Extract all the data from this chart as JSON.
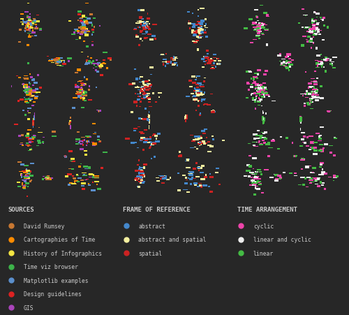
{
  "bg_color": "#272727",
  "text_color": "#cccccc",
  "title_fontsize": 6.5,
  "label_fontsize": 5.8,
  "sources_title": "SOURCES",
  "sources_items": [
    {
      "label": "David Rumsey",
      "color": "#c87832"
    },
    {
      "label": "Cartographies of Time",
      "color": "#ff8c00"
    },
    {
      "label": "History of Infographics",
      "color": "#f5e642"
    },
    {
      "label": "Time viz browser",
      "color": "#3db34a"
    },
    {
      "label": "Matplotlib examples",
      "color": "#5b8fcc"
    },
    {
      "label": "Design guidelines",
      "color": "#dd2222"
    },
    {
      "label": "GIS",
      "color": "#aa44bb"
    }
  ],
  "frame_title": "FRAME OF REFERENCE",
  "frame_items": [
    {
      "label": "abstract",
      "color": "#4488cc"
    },
    {
      "label": "abstract and spatial",
      "color": "#f5f0a0"
    },
    {
      "label": "spatial",
      "color": "#cc2222"
    }
  ],
  "time_title": "TIME ARRANGEMENT",
  "time_items": [
    {
      "label": "cyclic",
      "color": "#ee44aa"
    },
    {
      "label": "linear and cyclic",
      "color": "#eeeeee"
    },
    {
      "label": "linear",
      "color": "#44bb44"
    }
  ],
  "fig_width": 5.0,
  "fig_height": 4.52
}
